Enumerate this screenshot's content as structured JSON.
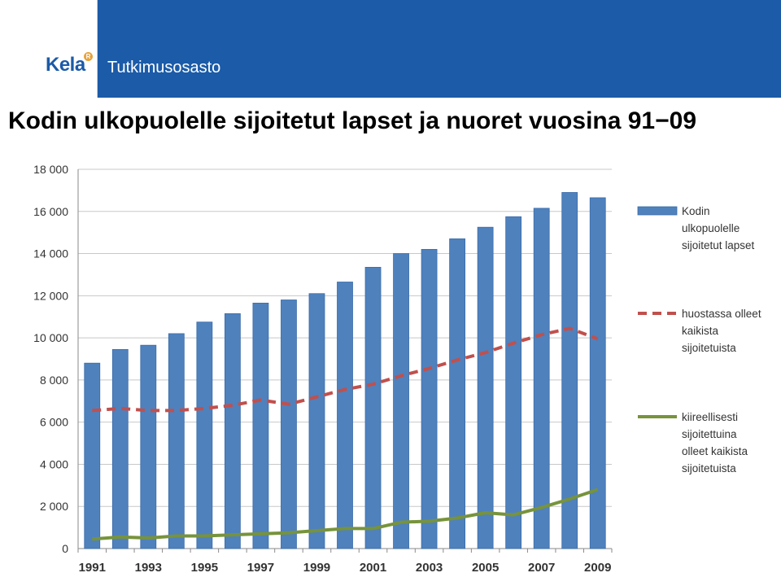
{
  "header": {
    "logo_text": "Kela",
    "logo_mark": "R",
    "department": "Tutkimusosasto",
    "background_color": "#1b5ba8"
  },
  "slide": {
    "title": "Kodin ulkopuolelle sijoitetut lapset ja nuoret vuosina 91−09"
  },
  "chart_data": {
    "type": "bar",
    "x": [
      1991,
      1992,
      1993,
      1994,
      1995,
      1996,
      1997,
      1998,
      1999,
      2000,
      2001,
      2002,
      2003,
      2004,
      2005,
      2006,
      2007,
      2008,
      2009
    ],
    "x_tick_labels": [
      "1991",
      "1993",
      "1995",
      "1997",
      "1999",
      "2001",
      "2003",
      "2005",
      "2007",
      "2009"
    ],
    "y_tick_labels": [
      "0",
      "2 000",
      "4 000",
      "6 000",
      "8 000",
      "10 000",
      "12 000",
      "14 000",
      "16 000",
      "18 000"
    ],
    "ylim": [
      0,
      18000
    ],
    "grid": true,
    "legend_position": "right",
    "series": [
      {
        "name": "Kodin ulkopuolelle sijoitetut lapset",
        "legend_lines": [
          "Kodin",
          "ulkopuolelle",
          "sijoitetut lapset"
        ],
        "kind": "bar",
        "color": "#4f81bd",
        "values": [
          8800,
          9450,
          9650,
          10200,
          10750,
          11150,
          11650,
          11800,
          12100,
          12650,
          13350,
          14000,
          14200,
          14700,
          15250,
          15750,
          16150,
          16900,
          16650
        ]
      },
      {
        "name": "huostassa olleet kaikista sijoitetuista",
        "legend_lines": [
          "huostassa olleet",
          "kaikista",
          "sijoitetuista"
        ],
        "kind": "dashed-line",
        "color": "#c0504d",
        "values": [
          6550,
          6650,
          6550,
          6550,
          6650,
          6800,
          7050,
          6850,
          7200,
          7550,
          7800,
          8200,
          8550,
          8950,
          9300,
          9750,
          10150,
          10450,
          9950
        ]
      },
      {
        "name": "kiireellisesti sijoitettuina olleet kaikista sijoitetuista",
        "legend_lines": [
          "kiireellisesti",
          "sijoitettuina",
          "olleet kaikista",
          "sijoitetuista"
        ],
        "kind": "line",
        "color": "#77933c",
        "values": [
          450,
          550,
          500,
          600,
          600,
          650,
          700,
          750,
          850,
          950,
          950,
          1250,
          1300,
          1450,
          1700,
          1600,
          1950,
          2350,
          2800
        ]
      }
    ]
  }
}
